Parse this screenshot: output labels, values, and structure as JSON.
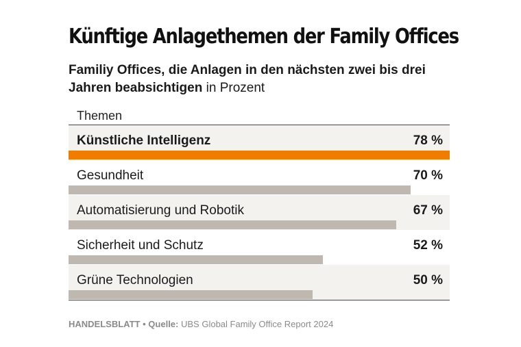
{
  "title": "Künftige Anlagethemen der Family Offices",
  "subtitle_bold": "Familiy Offices, die Anlagen in den nächsten zwei bis drei Jahren beabsichtigen",
  "subtitle_regular": "in Prozent",
  "column_header": "Themen",
  "colors": {
    "highlight": "#f07d00",
    "bar": "#bfb8b0"
  },
  "chart_data": {
    "type": "bar",
    "orientation": "horizontal",
    "categories": [
      "Künstliche Intelligenz",
      "Gesundheit",
      "Automatisierung und Robotik",
      "Sicherheit und Schutz",
      "Grüne Technologien"
    ],
    "values": [
      78,
      70,
      67,
      52,
      50
    ],
    "value_labels": [
      "78 %",
      "70 %",
      "67 %",
      "52 %",
      "50 %"
    ],
    "highlighted_index": 0,
    "xlim": [
      0,
      78
    ]
  },
  "footer": {
    "brand": "HANDELSBLATT",
    "separator": "•",
    "source_label": "Quelle:",
    "source": "UBS Global Family Office Report 2024"
  }
}
